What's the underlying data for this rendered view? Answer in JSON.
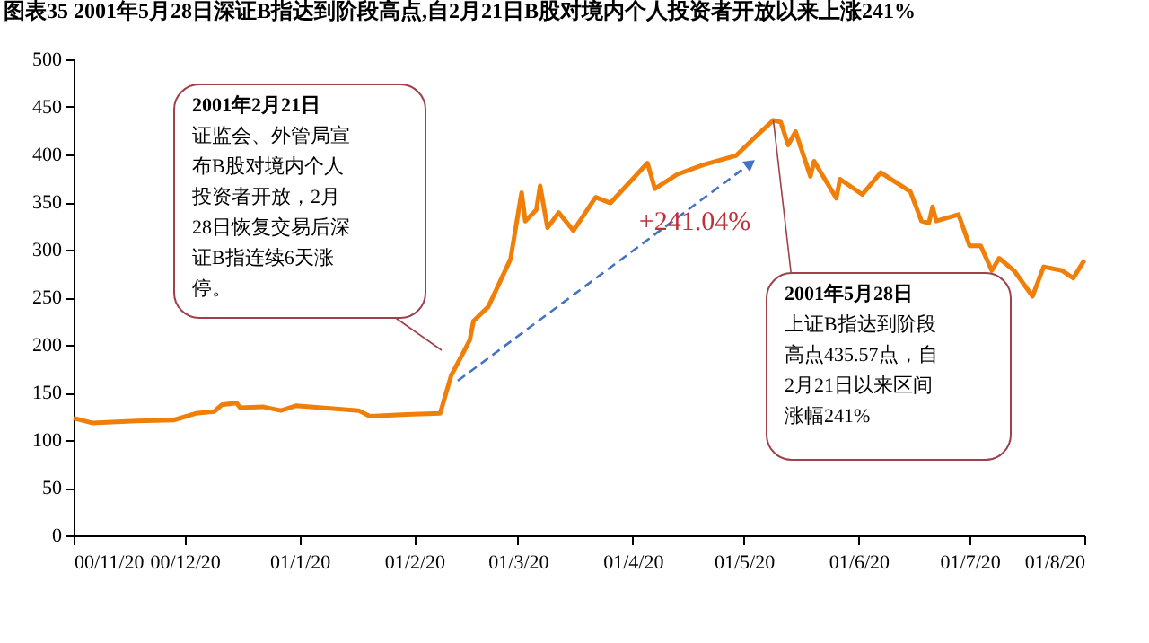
{
  "chart_data": {
    "type": "line",
    "title": "图表35 2001年5月28日深证B指达到阶段高点,自2月21日B股对境内个人投资者开放以来上涨241%",
    "x": [
      "2000-11-20",
      "2000-11-25",
      "2000-12-07",
      "2000-12-17",
      "2000-12-23",
      "2000-12-28",
      "2000-12-30",
      "2001-01-03",
      "2001-01-04",
      "2001-01-10",
      "2001-01-15",
      "2001-01-19",
      "2001-02-05",
      "2001-02-08",
      "2001-02-18",
      "2001-02-27",
      "2001-03-02",
      "2001-03-05",
      "2001-03-07",
      "2001-03-08",
      "2001-03-12",
      "2001-03-18",
      "2001-03-21",
      "2001-03-22",
      "2001-03-25",
      "2001-03-26",
      "2001-03-28",
      "2001-03-31",
      "2001-04-04",
      "2001-04-10",
      "2001-04-14",
      "2001-04-24",
      "2001-04-26",
      "2001-05-02",
      "2001-05-09",
      "2001-05-18",
      "2001-05-23",
      "2001-05-28",
      "2001-05-30",
      "2001-06-01",
      "2001-06-03",
      "2001-06-07",
      "2001-06-08",
      "2001-06-14",
      "2001-06-15",
      "2001-06-21",
      "2001-06-26",
      "2001-07-04",
      "2001-07-07",
      "2001-07-09",
      "2001-07-10",
      "2001-07-11",
      "2001-07-17",
      "2001-07-20",
      "2001-07-23",
      "2001-07-26",
      "2001-07-28",
      "2001-08-01",
      "2001-08-06",
      "2001-08-09",
      "2001-08-14",
      "2001-08-17",
      "2001-08-20"
    ],
    "series": [
      {
        "color": "#f07f09",
        "values": [
          123,
          118,
          120,
          121,
          128,
          130,
          137,
          139,
          134,
          135,
          131,
          136,
          131,
          125,
          127,
          128,
          168,
          190,
          205,
          225,
          240,
          290,
          360,
          330,
          342,
          367,
          323,
          339,
          320,
          355,
          349,
          391,
          364,
          379,
          389,
          399,
          418,
          436,
          434,
          410,
          424,
          377,
          393,
          354,
          374,
          358,
          381,
          361,
          330,
          328,
          345,
          330,
          337,
          304,
          304,
          278,
          291,
          278,
          251,
          282,
          278,
          270,
          289
        ]
      }
    ],
    "xlim": [
      "2000-11-20",
      "2001-08-20"
    ],
    "xticks": [
      {
        "value": "2000-11-20",
        "label": "00/11/20"
      },
      {
        "value": "2000-12-20",
        "label": "00/12/20"
      },
      {
        "value": "2001-01-20",
        "label": "01/1/20"
      },
      {
        "value": "2001-02-20",
        "label": "01/2/20"
      },
      {
        "value": "2001-03-20",
        "label": "01/3/20"
      },
      {
        "value": "2001-04-20",
        "label": "01/4/20"
      },
      {
        "value": "2001-05-20",
        "label": "01/5/20"
      },
      {
        "value": "2001-06-20",
        "label": "01/6/20"
      },
      {
        "value": "2001-07-20",
        "label": "01/7/20"
      },
      {
        "value": "2001-08-20",
        "label": "01/8/20"
      }
    ],
    "ylim": [
      0,
      500
    ],
    "yticks": [
      0,
      50,
      100,
      150,
      200,
      250,
      300,
      350,
      400,
      450,
      500
    ],
    "grid": false,
    "marker": "none",
    "line_style": "solid",
    "annotations": [
      "2001年2月21日",
      "证监会、外管局宣布B股对境内个人投资者开放，2月28日恢复交易后深证B指连续6天涨停。",
      {
        "text": "2001年5月28日",
        "x": "2001-05-28",
        "y": 436
      },
      "上证B指达到阶段高点435.57点，自2月21日以来区间涨幅241%",
      {
        "text": "+241.04%"
      }
    ]
  }
}
